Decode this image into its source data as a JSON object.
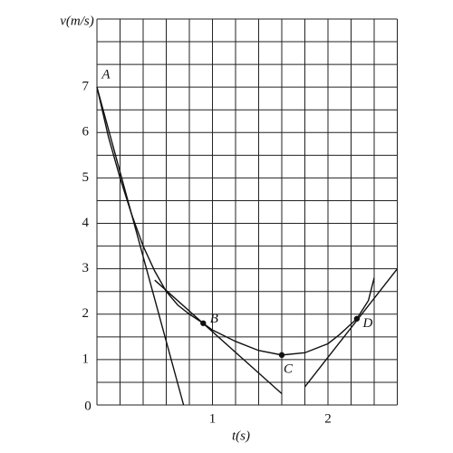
{
  "chart_data": {
    "type": "line",
    "xlabel": "t(s)",
    "ylabel": "v(m/s)",
    "origin_label": "0",
    "xlim": [
      0,
      2.6
    ],
    "ylim": [
      0,
      8.5
    ],
    "xticks": [
      1,
      2
    ],
    "yticks": [
      1,
      2,
      3,
      4,
      5,
      6,
      7
    ],
    "minor_xticks": [
      0,
      0.2,
      0.4,
      0.6,
      0.8,
      1,
      1.2,
      1.4,
      1.6,
      1.8,
      2,
      2.2,
      2.4,
      2.6
    ],
    "minor_yticks": [
      0,
      0.5,
      1,
      1.5,
      2,
      2.5,
      3,
      3.5,
      4,
      4.5,
      5,
      5.5,
      6,
      6.5,
      7,
      7.5,
      8,
      8.5
    ],
    "grid": true,
    "color": "#111111",
    "series": [
      {
        "x": [
          0,
          0.1,
          0.2,
          0.3,
          0.4,
          0.5,
          0.6,
          0.7,
          0.8,
          0.92,
          1.0,
          1.2,
          1.4,
          1.6,
          1.8,
          2.0,
          2.1,
          2.25,
          2.35,
          2.4
        ],
        "values": [
          7,
          5.9,
          5.0,
          4.2,
          3.5,
          2.95,
          2.5,
          2.2,
          2.0,
          1.8,
          1.65,
          1.4,
          1.2,
          1.1,
          1.15,
          1.35,
          1.55,
          1.9,
          2.3,
          2.8
        ]
      },
      {
        "x": [
          0,
          0.75
        ],
        "values": [
          7,
          0
        ]
      },
      {
        "x": [
          0.5,
          1.6
        ],
        "values": [
          2.75,
          0.25
        ]
      },
      {
        "x": [
          1.8,
          2.6
        ],
        "values": [
          0.4,
          3
        ]
      }
    ],
    "points": [
      {
        "label": "A",
        "x": 0,
        "y": 7,
        "dot": false
      },
      {
        "label": "B",
        "x": 0.92,
        "y": 1.8,
        "dot": true
      },
      {
        "label": "C",
        "x": 1.6,
        "y": 1.1,
        "dot": true
      },
      {
        "label": "D",
        "x": 2.25,
        "y": 1.9,
        "dot": true
      }
    ]
  }
}
